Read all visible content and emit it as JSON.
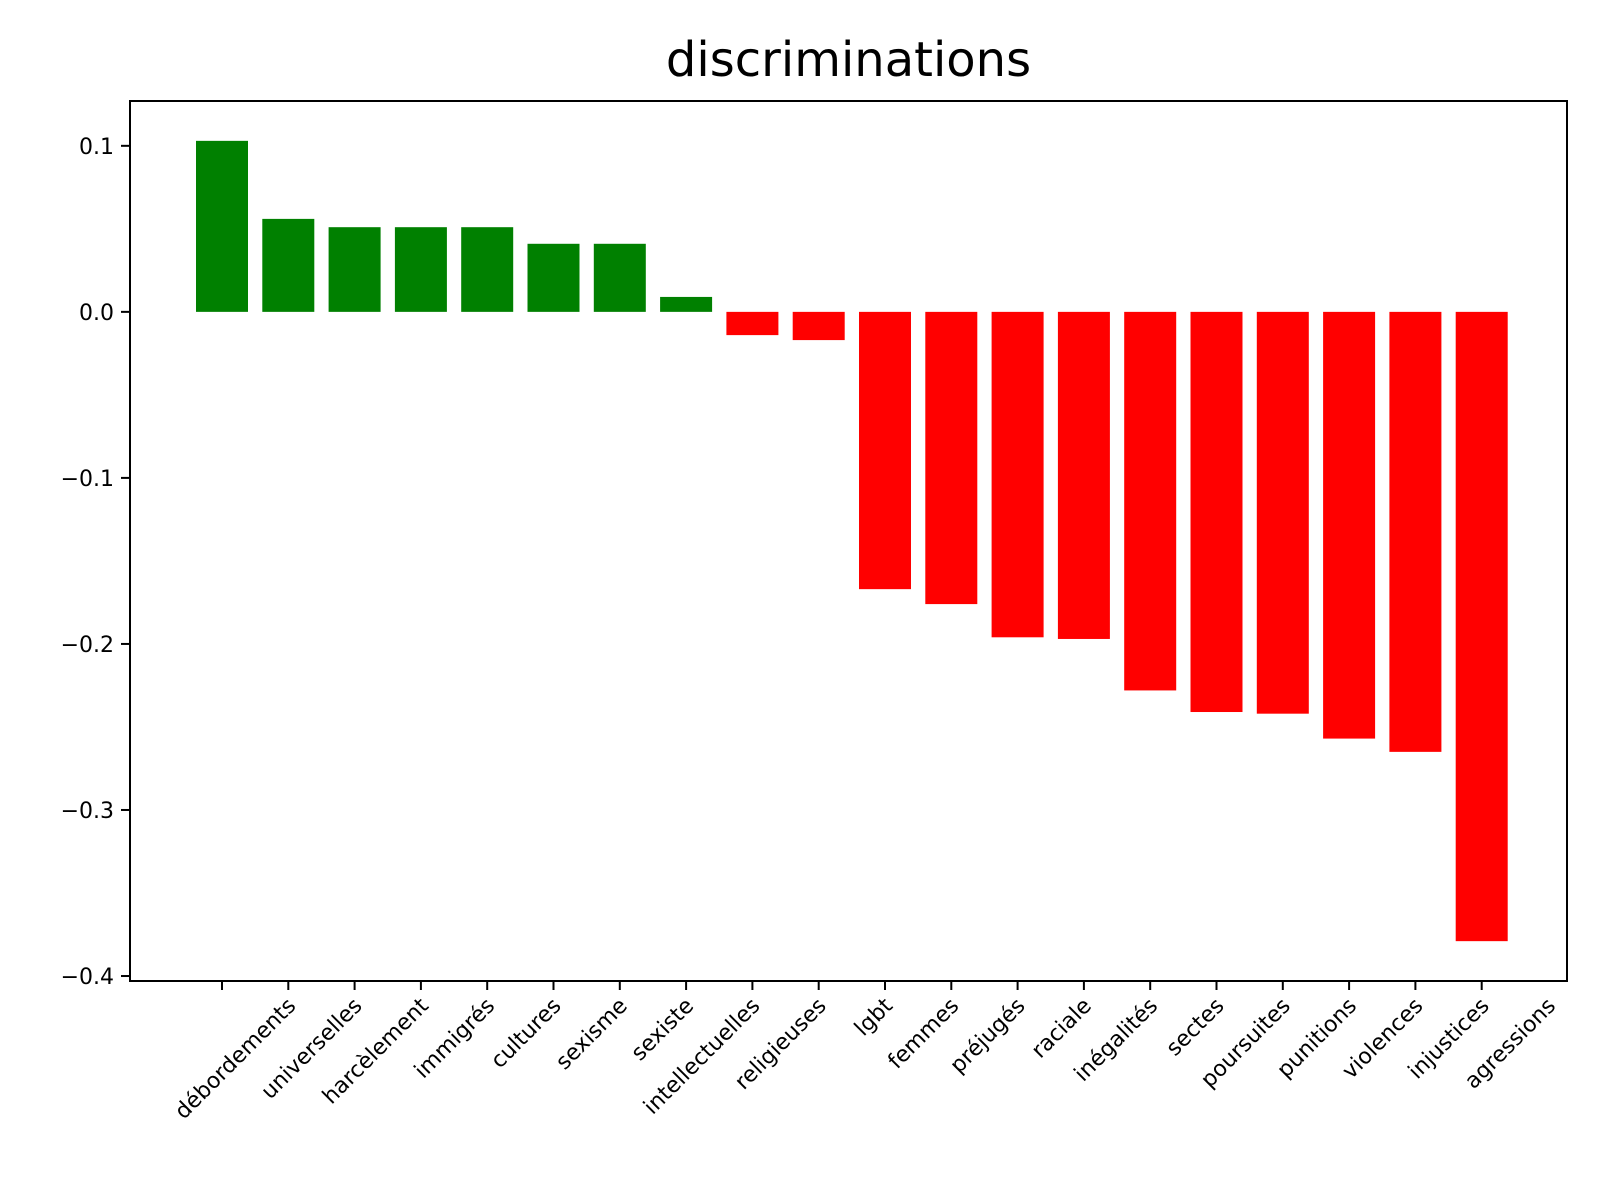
{
  "chart_data": {
    "type": "bar",
    "title": "discriminations",
    "xlabel": "",
    "ylabel": "",
    "categories": [
      "débordements",
      "universelles",
      "harcèlement",
      "immigrés",
      "cultures",
      "sexisme",
      "sexiste",
      "intellectuelles",
      "religieuses",
      "lgbt",
      "femmes",
      "préjugés",
      "raciale",
      "inégalités",
      "sectes",
      "poursuites",
      "punitions",
      "violences",
      "injustices",
      "agressions"
    ],
    "values": [
      0.103,
      0.056,
      0.051,
      0.051,
      0.051,
      0.041,
      0.041,
      0.009,
      -0.014,
      -0.017,
      -0.167,
      -0.176,
      -0.196,
      -0.197,
      -0.228,
      -0.241,
      -0.242,
      -0.257,
      -0.265,
      -0.379
    ],
    "ylim": [
      -0.403,
      0.127
    ],
    "yticks": [
      0.1,
      0.0,
      -0.1,
      -0.2,
      -0.3,
      -0.4
    ],
    "ytick_labels": [
      "0.1",
      "0.0",
      "−0.1",
      "−0.2",
      "−0.3",
      "−0.4"
    ],
    "positive_color": "#008000",
    "negative_color": "#ff0000",
    "grid": false,
    "legend": "none"
  }
}
